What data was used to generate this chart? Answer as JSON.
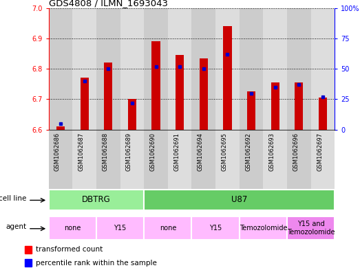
{
  "title": "GDS4808 / ILMN_1693043",
  "samples": [
    "GSM1062686",
    "GSM1062687",
    "GSM1062688",
    "GSM1062689",
    "GSM1062690",
    "GSM1062691",
    "GSM1062694",
    "GSM1062695",
    "GSM1062692",
    "GSM1062693",
    "GSM1062696",
    "GSM1062697"
  ],
  "transformed_count": [
    6.61,
    6.77,
    6.82,
    6.7,
    6.89,
    6.845,
    6.835,
    6.94,
    6.725,
    6.755,
    6.755,
    6.705
  ],
  "percentile_rank": [
    5,
    40,
    50,
    22,
    52,
    52,
    50,
    62,
    30,
    35,
    37,
    27
  ],
  "ylim_left": [
    6.6,
    7.0
  ],
  "ylim_right": [
    0,
    100
  ],
  "yticks_left": [
    6.6,
    6.7,
    6.8,
    6.9,
    7.0
  ],
  "yticks_right": [
    0,
    25,
    50,
    75,
    100
  ],
  "ytick_labels_right": [
    "0",
    "25",
    "50",
    "75",
    "100%"
  ],
  "bar_color": "#cc0000",
  "dot_color": "#0000cc",
  "bar_bottom": 6.6,
  "cell_line_groups": [
    {
      "label": "DBTRG",
      "start": 0,
      "end": 3,
      "color": "#99ee99"
    },
    {
      "label": "U87",
      "start": 4,
      "end": 11,
      "color": "#66cc66"
    }
  ],
  "agent_groups": [
    {
      "label": "none",
      "start": 0,
      "end": 1,
      "color": "#ffbbff"
    },
    {
      "label": "Y15",
      "start": 2,
      "end": 3,
      "color": "#ffbbff"
    },
    {
      "label": "none",
      "start": 4,
      "end": 5,
      "color": "#ffbbff"
    },
    {
      "label": "Y15",
      "start": 6,
      "end": 7,
      "color": "#ffbbff"
    },
    {
      "label": "Temozolomide",
      "start": 8,
      "end": 9,
      "color": "#ffbbff"
    },
    {
      "label": "Y15 and\nTemozolomide",
      "start": 10,
      "end": 11,
      "color": "#ee88ee"
    }
  ],
  "col_colors": [
    "#cccccc",
    "#dddddd",
    "#cccccc",
    "#dddddd",
    "#cccccc",
    "#dddddd",
    "#cccccc",
    "#dddddd",
    "#cccccc",
    "#dddddd",
    "#cccccc",
    "#dddddd"
  ],
  "legend_red": "transformed count",
  "legend_blue": "percentile rank within the sample",
  "cell_line_label": "cell line",
  "agent_label": "agent"
}
